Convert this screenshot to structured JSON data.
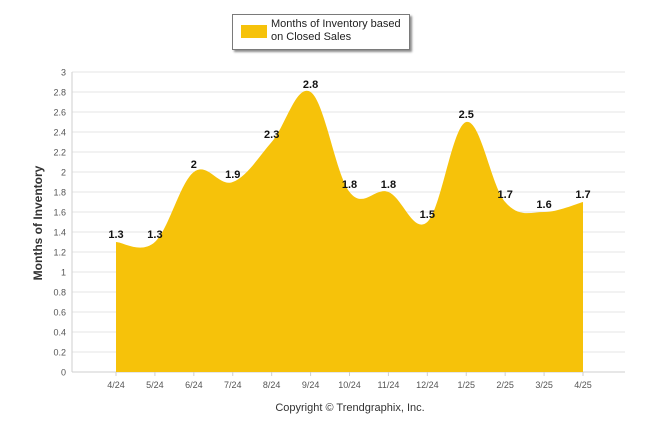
{
  "legend": {
    "label": "Months of Inventory based on Closed Sales"
  },
  "footer": {
    "copyright": "Copyright © Trendgraphix, Inc."
  },
  "colors": {
    "fill": "#f6c20a",
    "grid": "#e6e6e6",
    "axis": "#cfcfcf",
    "text": "#333333"
  },
  "chart_data": {
    "type": "area",
    "title": "",
    "xlabel": "",
    "ylabel": "Months of Inventory",
    "categories": [
      "4/24",
      "5/24",
      "6/24",
      "7/24",
      "8/24",
      "9/24",
      "10/24",
      "11/24",
      "12/24",
      "1/25",
      "2/25",
      "3/25",
      "4/25"
    ],
    "series": [
      {
        "name": "Months of Inventory based on Closed Sales",
        "values": [
          1.3,
          1.3,
          2,
          1.9,
          2.3,
          2.8,
          1.8,
          1.8,
          1.5,
          2.5,
          1.7,
          1.6,
          1.7
        ]
      }
    ],
    "ylim": [
      0,
      3
    ],
    "yticks": [
      0,
      0.2,
      0.4,
      0.6,
      0.8,
      1,
      1.2,
      1.4,
      1.6,
      1.8,
      2,
      2.2,
      2.4,
      2.6,
      2.8,
      3
    ],
    "grid": true,
    "legend_position": "top-center",
    "data_labels": true
  }
}
